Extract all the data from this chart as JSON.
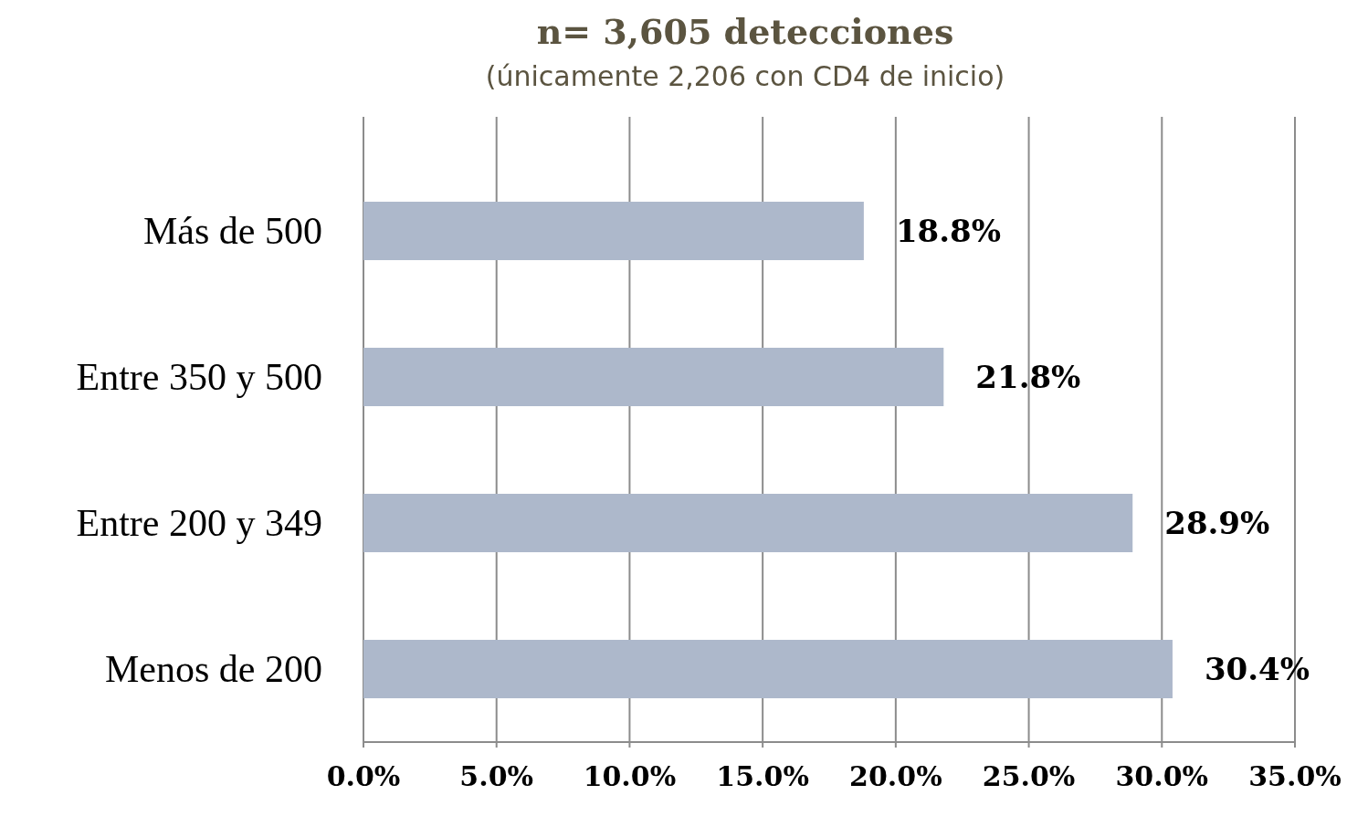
{
  "chart_data": {
    "type": "bar",
    "orientation": "horizontal",
    "title": "n= 3,605 detecciones",
    "subtitle": "(únicamente 2,206 con CD4 de inicio)",
    "categories": [
      "Más de 500",
      "Entre 350 y 500",
      "Entre 200 y 349",
      "Menos de 200"
    ],
    "values": [
      18.8,
      21.8,
      28.9,
      30.4
    ],
    "color": "#adb8cb",
    "value_labels": [
      "18.8%",
      "21.8%",
      "28.9%",
      "30.4%"
    ],
    "xlim": [
      0,
      35
    ],
    "xticks": [
      {
        "value": 0,
        "label": "0.0%"
      },
      {
        "value": 5,
        "label": "5.0%"
      },
      {
        "value": 10,
        "label": "10.0%"
      },
      {
        "value": 15,
        "label": "15.0%"
      },
      {
        "value": 20,
        "label": "20.0%"
      },
      {
        "value": 25,
        "label": "25.0%"
      },
      {
        "value": 30,
        "label": "30.0%"
      },
      {
        "value": 35,
        "label": "35.0%"
      }
    ],
    "grid": "x"
  }
}
